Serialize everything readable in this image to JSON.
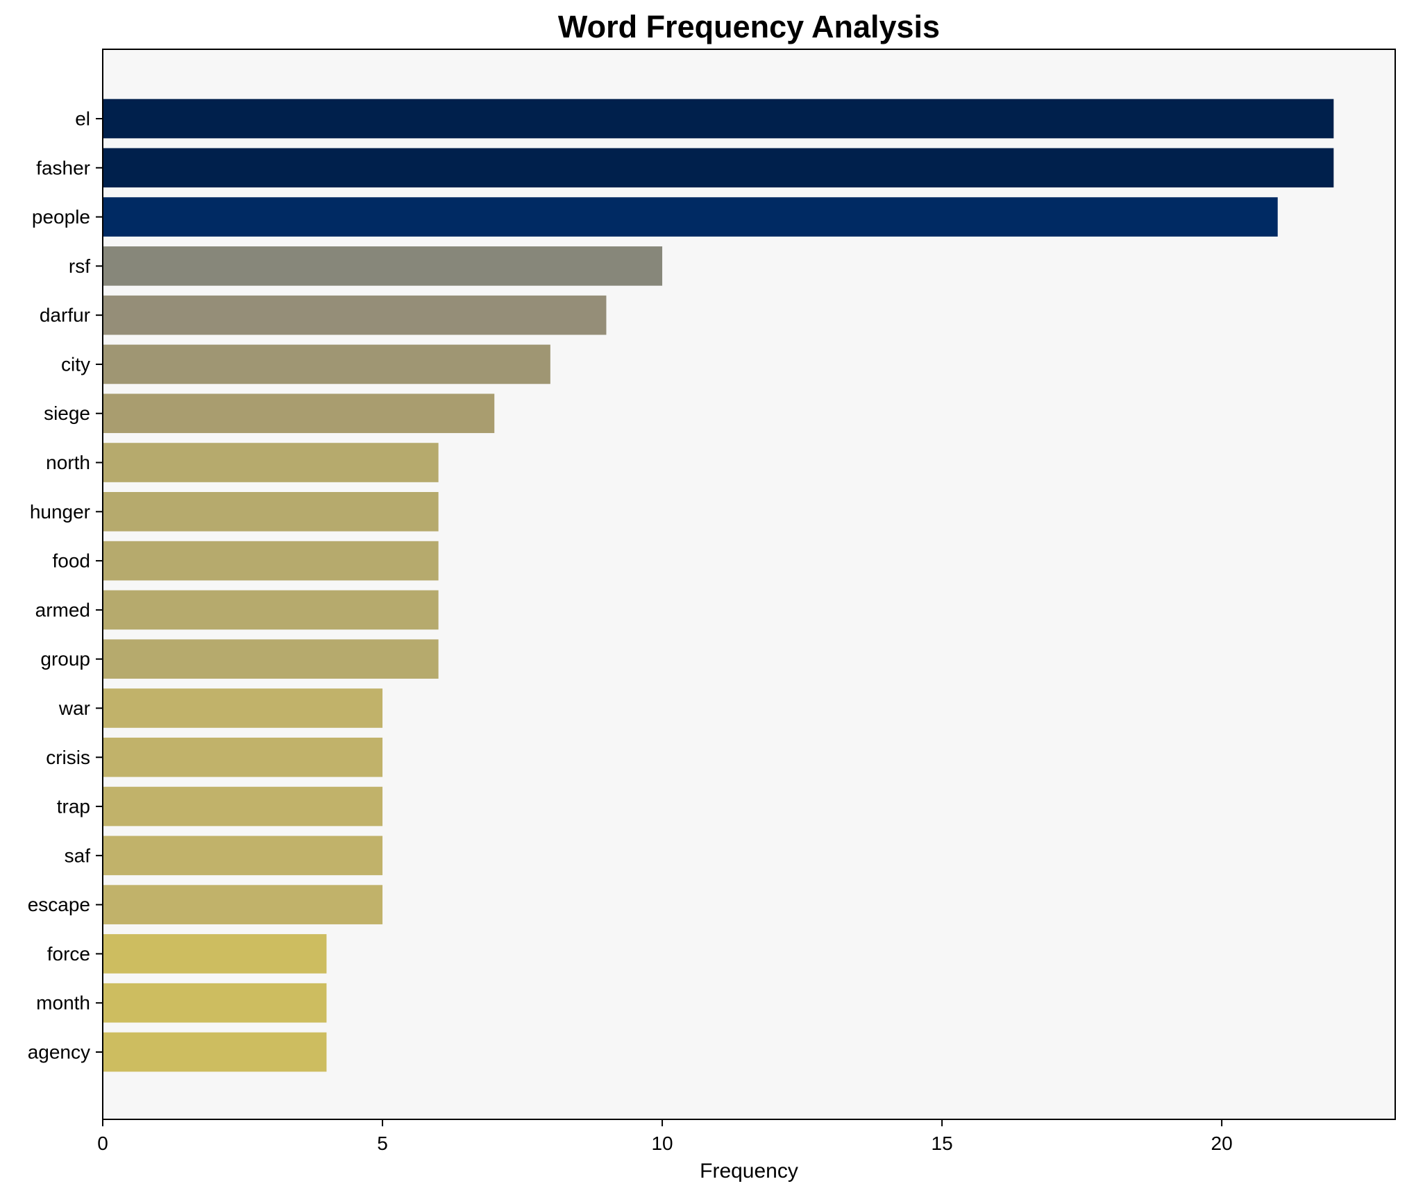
{
  "chart_data": {
    "type": "bar",
    "orientation": "horizontal",
    "title": "Word Frequency Analysis",
    "xlabel": "Frequency",
    "ylabel": "",
    "xlim": [
      0,
      23.1
    ],
    "xticks": [
      0,
      5,
      10,
      15,
      20
    ],
    "grid": false,
    "legend": "none",
    "plot_background": "#f7f7f7",
    "categories": [
      "el",
      "fasher",
      "people",
      "rsf",
      "darfur",
      "city",
      "siege",
      "north",
      "hunger",
      "food",
      "armed",
      "group",
      "war",
      "crisis",
      "trap",
      "saf",
      "escape",
      "force",
      "month",
      "agency"
    ],
    "values": [
      22,
      22,
      21,
      10,
      9,
      8,
      7,
      6,
      6,
      6,
      6,
      6,
      5,
      5,
      5,
      5,
      5,
      4,
      4,
      4
    ],
    "colors": [
      "#00204c",
      "#00204c",
      "#002a63",
      "#87877a",
      "#958e78",
      "#9f9673",
      "#a99d6f",
      "#b6aa6d",
      "#b6aa6d",
      "#b6aa6d",
      "#b6aa6d",
      "#b6aa6d",
      "#c1b26a",
      "#c1b26a",
      "#c1b26a",
      "#c1b26a",
      "#c1b26a",
      "#cdbd60",
      "#cdbd60",
      "#cdbd60"
    ]
  }
}
